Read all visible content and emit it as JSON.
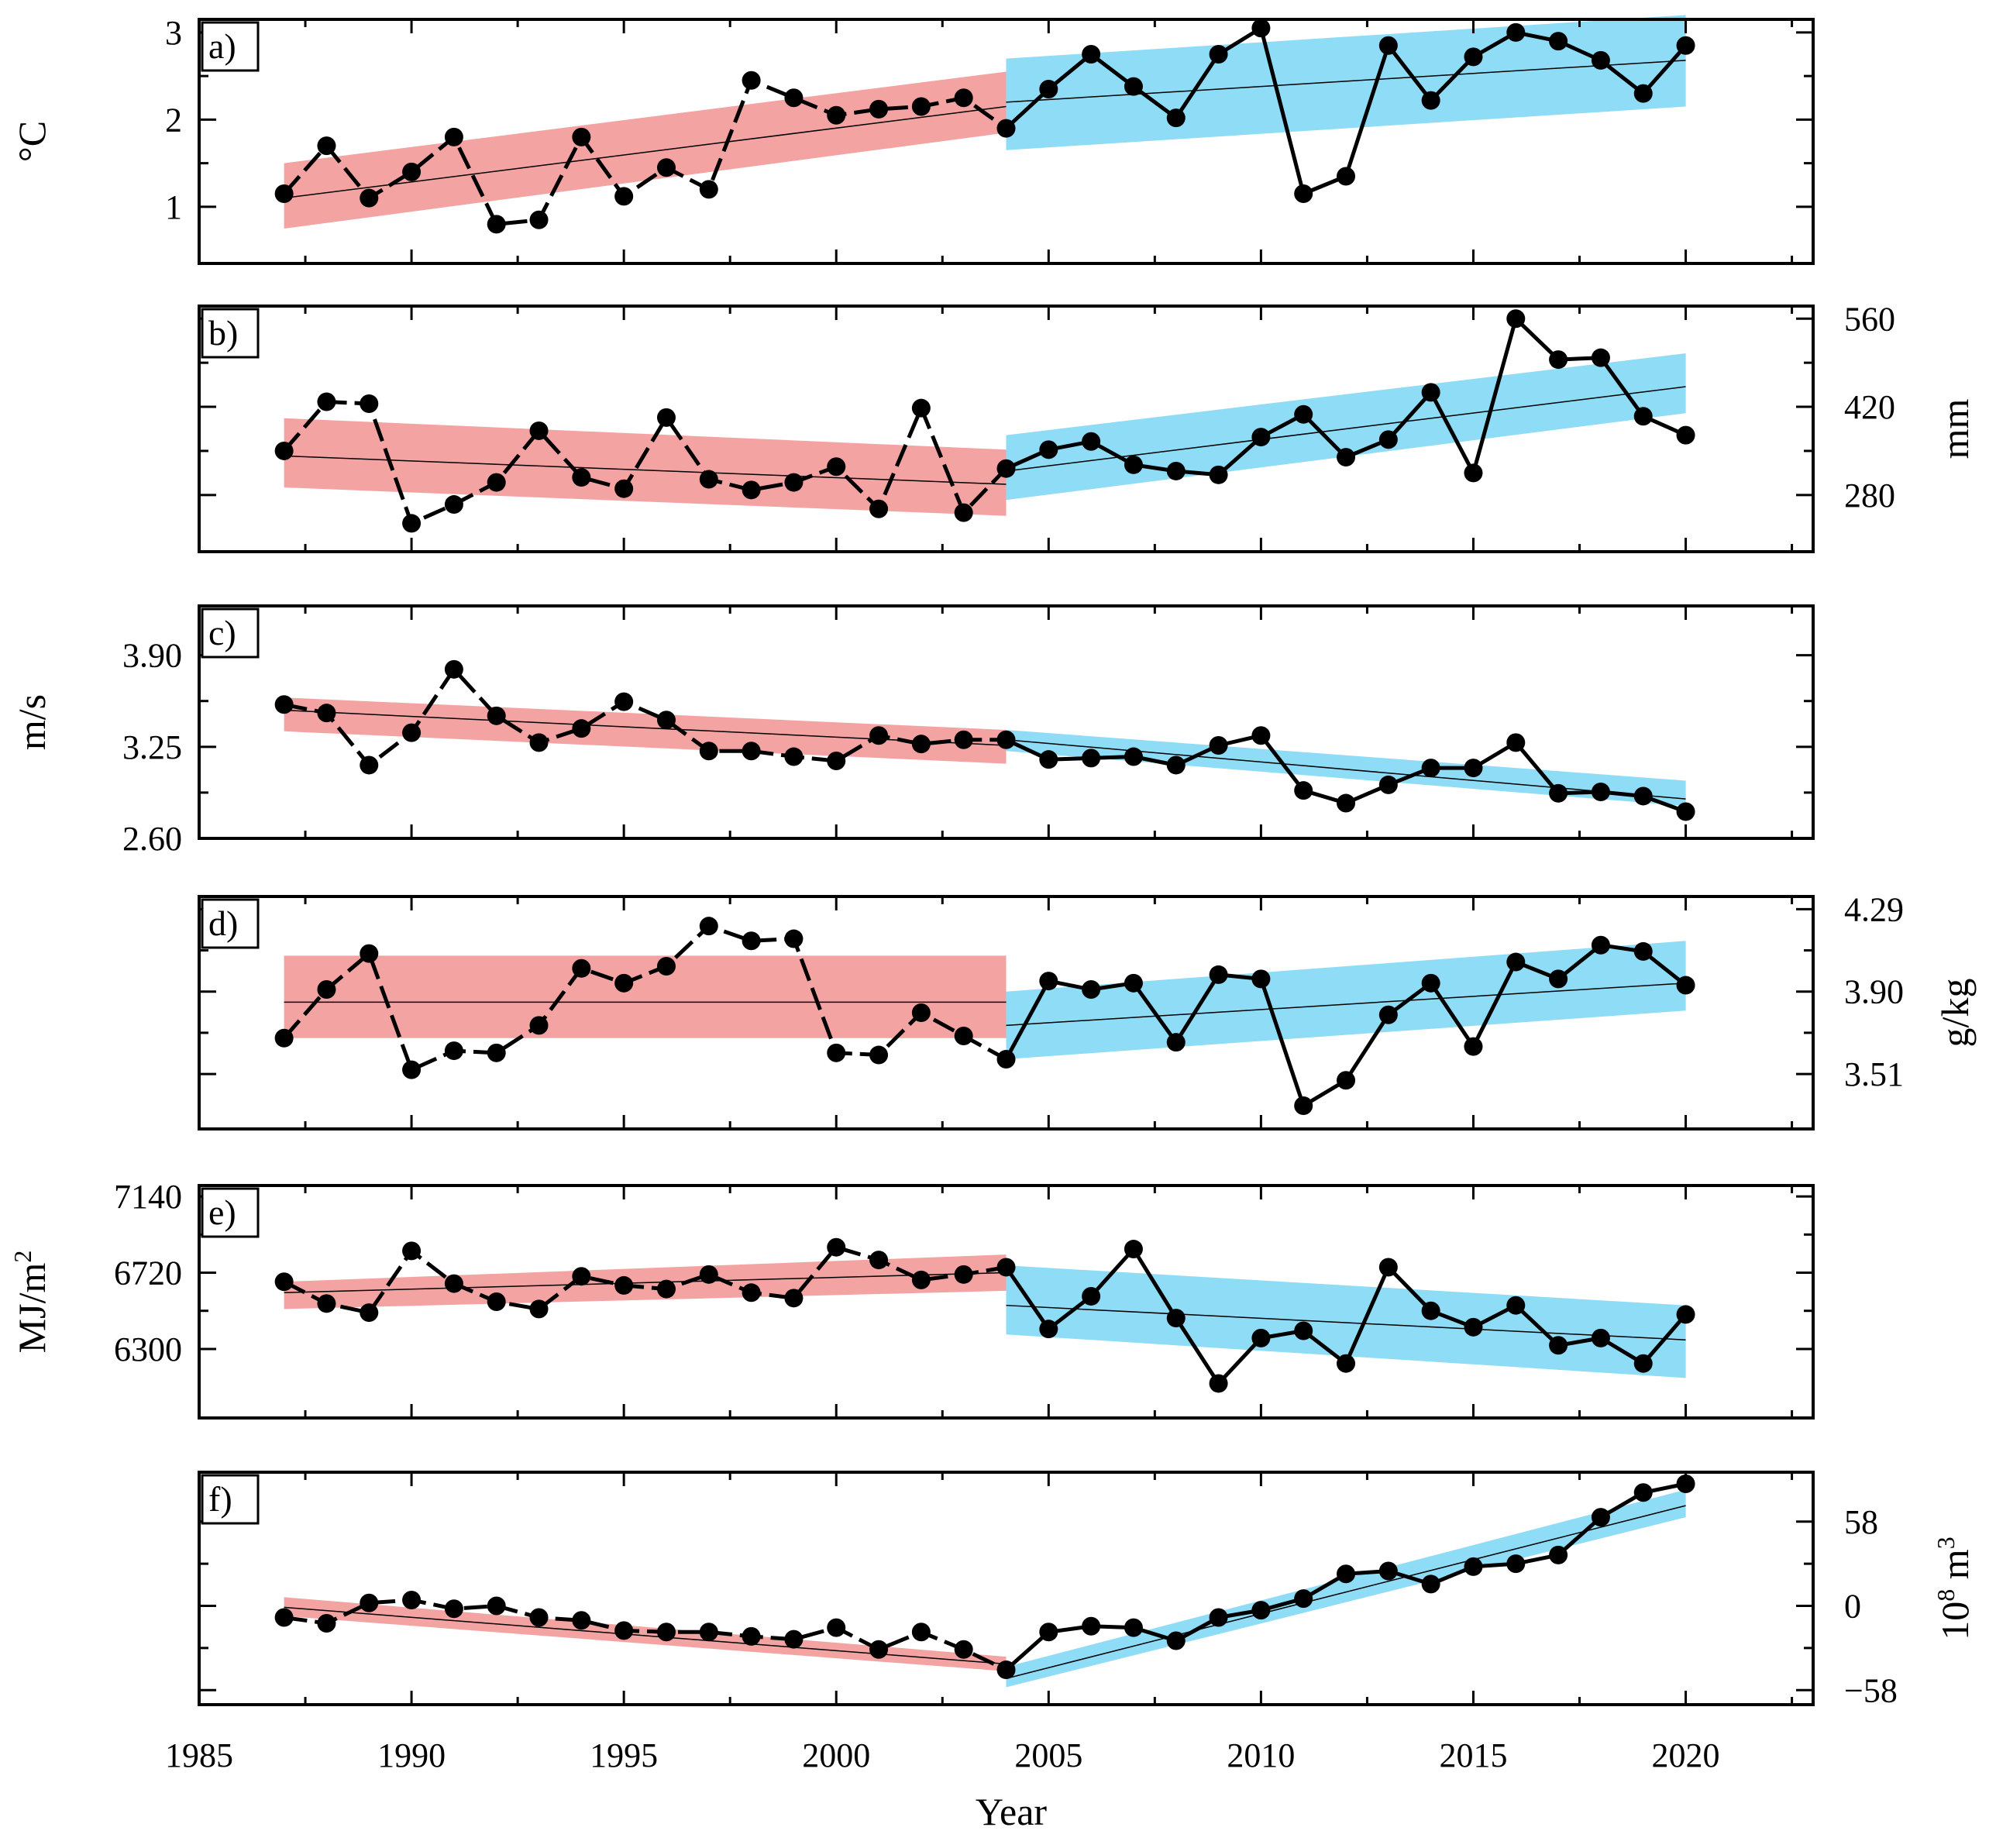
{
  "figure": {
    "xaxis": {
      "label": "Year",
      "ticks": [
        1985,
        1990,
        1995,
        2000,
        2005,
        2010,
        2015,
        2020
      ],
      "range": [
        1985,
        2023
      ]
    },
    "colors": {
      "early_band": "#f4a3a3",
      "late_band": "#8fdcf7",
      "line": "#000000",
      "marker": "#000000"
    },
    "split_year": 2004
  },
  "chart_data": [
    {
      "id": "a",
      "type": "line",
      "panel_label": "a)",
      "unit": "°C",
      "unit_side": "left",
      "tick_side": "left",
      "ylim": [
        0.35,
        3.15
      ],
      "yticks": [
        "1",
        "2",
        "3"
      ],
      "ytick_values": [
        1,
        2,
        3
      ],
      "x": [
        1987,
        1988,
        1989,
        1990,
        1991,
        1992,
        1993,
        1994,
        1995,
        1996,
        1997,
        1998,
        1999,
        2000,
        2001,
        2002,
        2003,
        2004,
        2005,
        2006,
        2007,
        2008,
        2009,
        2010,
        2011,
        2012,
        2013,
        2014,
        2015,
        2016,
        2017,
        2018,
        2019,
        2020
      ],
      "values": [
        1.15,
        1.7,
        1.1,
        1.4,
        1.8,
        0.8,
        0.85,
        1.8,
        1.12,
        1.45,
        1.2,
        2.45,
        2.25,
        2.05,
        2.12,
        2.15,
        2.25,
        1.9,
        2.35,
        2.75,
        2.38,
        2.02,
        2.75,
        3.05,
        1.15,
        1.35,
        2.85,
        2.22,
        2.72,
        3.0,
        2.9,
        2.68,
        2.3,
        2.85
      ],
      "trend_early": {
        "x": [
          1987,
          2004
        ],
        "y": [
          1.1,
          2.15
        ],
        "band_lower": [
          0.75,
          1.85
        ],
        "band_upper": [
          1.5,
          2.55
        ]
      },
      "trend_late": {
        "x": [
          2004,
          2020
        ],
        "y": [
          2.2,
          2.68
        ],
        "band_lower": [
          1.65,
          2.15
        ],
        "band_upper": [
          2.7,
          3.2
        ]
      }
    },
    {
      "id": "b",
      "type": "line",
      "panel_label": "b)",
      "unit": "mm",
      "unit_side": "right",
      "tick_side": "right",
      "ylim": [
        190,
        580
      ],
      "yticks": [
        "280",
        "420",
        "560"
      ],
      "ytick_values": [
        280,
        420,
        560
      ],
      "x": [
        1987,
        1988,
        1989,
        1990,
        1991,
        1992,
        1993,
        1994,
        1995,
        1996,
        1997,
        1998,
        1999,
        2000,
        2001,
        2002,
        2003,
        2004,
        2005,
        2006,
        2007,
        2008,
        2009,
        2010,
        2011,
        2012,
        2013,
        2014,
        2015,
        2016,
        2017,
        2018,
        2019,
        2020
      ],
      "values": [
        350,
        428,
        425,
        235,
        265,
        300,
        382,
        308,
        290,
        403,
        305,
        288,
        300,
        325,
        258,
        418,
        252,
        322,
        352,
        365,
        328,
        318,
        312,
        372,
        408,
        340,
        368,
        443,
        315,
        560,
        495,
        498,
        405,
        375
      ],
      "trend_early": {
        "x": [
          2004,
          1987
        ],
        "y": [
          297,
          342
        ],
        "band_lower": [
          247,
          292
        ],
        "band_upper": [
          352,
          402
        ]
      },
      "trend_late": {
        "x": [
          2004,
          2020
        ],
        "y": [
          318,
          452
        ],
        "band_lower": [
          272,
          410
        ],
        "band_upper": [
          375,
          505
        ]
      }
    },
    {
      "id": "c",
      "type": "line",
      "panel_label": "c)",
      "unit": "m/s",
      "unit_side": "left",
      "tick_side": "left",
      "ylim": [
        2.6,
        4.25
      ],
      "yticks": [
        "2.60",
        "3.25",
        "3.90"
      ],
      "ytick_values": [
        2.6,
        3.25,
        3.9
      ],
      "x": [
        1987,
        1988,
        1989,
        1990,
        1991,
        1992,
        1993,
        1994,
        1995,
        1996,
        1997,
        1998,
        1999,
        2000,
        2001,
        2002,
        2003,
        2004,
        2005,
        2006,
        2007,
        2008,
        2009,
        2010,
        2011,
        2012,
        2013,
        2014,
        2015,
        2016,
        2017,
        2018,
        2019,
        2020
      ],
      "values": [
        3.55,
        3.49,
        3.12,
        3.35,
        3.8,
        3.47,
        3.28,
        3.38,
        3.57,
        3.44,
        3.22,
        3.22,
        3.18,
        3.15,
        3.33,
        3.27,
        3.3,
        3.3,
        3.16,
        3.17,
        3.18,
        3.12,
        3.26,
        3.33,
        2.94,
        2.85,
        2.98,
        3.1,
        3.1,
        3.28,
        2.92,
        2.93,
        2.9,
        2.79
      ],
      "trend_early": {
        "x": [
          1987,
          2004
        ],
        "y": [
          3.51,
          3.26
        ],
        "band_lower": [
          3.36,
          3.13
        ],
        "band_upper": [
          3.6,
          3.37
        ]
      },
      "trend_late": {
        "x": [
          2004,
          2020
        ],
        "y": [
          3.3,
          2.88
        ],
        "band_lower": [
          3.22,
          2.83
        ],
        "band_upper": [
          3.37,
          3.01
        ]
      }
    },
    {
      "id": "d",
      "type": "line",
      "panel_label": "d)",
      "unit": "g/kg",
      "unit_side": "right",
      "tick_side": "right",
      "ylim": [
        3.25,
        4.35
      ],
      "yticks": [
        "3.51",
        "3.90",
        "4.29"
      ],
      "ytick_values": [
        3.51,
        3.9,
        4.29
      ],
      "x": [
        1987,
        1988,
        1989,
        1990,
        1991,
        1992,
        1993,
        1994,
        1995,
        1996,
        1997,
        1998,
        1999,
        2000,
        2001,
        2002,
        2003,
        2004,
        2005,
        2006,
        2007,
        2008,
        2009,
        2010,
        2011,
        2012,
        2013,
        2014,
        2015,
        2016,
        2017,
        2018,
        2019,
        2020
      ],
      "values": [
        3.68,
        3.91,
        4.08,
        3.53,
        3.62,
        3.61,
        3.74,
        4.01,
        3.94,
        4.02,
        4.21,
        4.14,
        4.15,
        3.61,
        3.6,
        3.8,
        3.69,
        3.58,
        3.95,
        3.91,
        3.94,
        3.66,
        3.98,
        3.96,
        3.36,
        3.48,
        3.79,
        3.94,
        3.64,
        4.04,
        3.96,
        4.12,
        4.09,
        3.93
      ],
      "trend_early": {
        "x": [
          1987,
          2004
        ],
        "y": [
          3.85,
          3.85
        ],
        "band_lower": [
          3.68,
          3.68
        ],
        "band_upper": [
          4.07,
          4.07
        ]
      },
      "trend_late": {
        "x": [
          2004,
          2020
        ],
        "y": [
          3.74,
          3.94
        ],
        "band_lower": [
          3.58,
          3.81
        ],
        "band_upper": [
          3.9,
          4.14
        ]
      }
    },
    {
      "id": "e",
      "type": "line",
      "panel_label": "e)",
      "unit": "MJ/m",
      "unit_sup": "2",
      "unit_side": "left",
      "tick_side": "left",
      "ylim": [
        5920,
        7200
      ],
      "yticks": [
        "6300",
        "6720",
        "7140"
      ],
      "ytick_values": [
        6300,
        6720,
        7140
      ],
      "x": [
        1987,
        1988,
        1989,
        1990,
        1991,
        1992,
        1993,
        1994,
        1995,
        1996,
        1997,
        1998,
        1999,
        2000,
        2001,
        2002,
        2003,
        2004,
        2005,
        2006,
        2007,
        2008,
        2009,
        2010,
        2011,
        2012,
        2013,
        2014,
        2015,
        2016,
        2017,
        2018,
        2019,
        2020
      ],
      "values": [
        6670,
        6550,
        6500,
        6840,
        6660,
        6560,
        6520,
        6700,
        6650,
        6630,
        6710,
        6610,
        6580,
        6860,
        6790,
        6680,
        6710,
        6750,
        6410,
        6590,
        6850,
        6470,
        6110,
        6360,
        6400,
        6220,
        6750,
        6510,
        6420,
        6540,
        6320,
        6360,
        6220,
        6490
      ],
      "trend_early": {
        "x": [
          1987,
          2004
        ],
        "y": [
          6610,
          6720
        ],
        "band_lower": [
          6520,
          6620
        ],
        "band_upper": [
          6670,
          6820
        ]
      },
      "trend_late": {
        "x": [
          2004,
          2020
        ],
        "y": [
          6540,
          6350
        ],
        "band_lower": [
          6380,
          6140
        ],
        "band_upper": [
          6760,
          6540
        ]
      }
    },
    {
      "id": "f",
      "type": "line",
      "panel_label": "f)",
      "unit": "10",
      "unit_sup": "8",
      "unit_tail": " m",
      "unit_sup2": "3",
      "unit_side": "right",
      "tick_side": "right",
      "ylim": [
        -68,
        92
      ],
      "yticks": [
        "−58",
        "0",
        "58"
      ],
      "ytick_values": [
        -58,
        0,
        58
      ],
      "x": [
        1987,
        1988,
        1989,
        1990,
        1991,
        1992,
        1993,
        1994,
        1995,
        1996,
        1997,
        1998,
        1999,
        2000,
        2001,
        2002,
        2003,
        2004,
        2005,
        2006,
        2007,
        2008,
        2009,
        2010,
        2011,
        2012,
        2013,
        2014,
        2015,
        2016,
        2017,
        2018,
        2019,
        2020
      ],
      "values": [
        -8,
        -12,
        2,
        4,
        -2,
        0,
        -8,
        -10,
        -17,
        -18,
        -18,
        -21,
        -23,
        -15,
        -30,
        -18,
        -30,
        -44,
        -18,
        -14,
        -15,
        -24,
        -8,
        -3,
        5,
        22,
        24,
        15,
        27,
        29,
        35,
        61,
        78,
        84
      ],
      "trend_early": {
        "x": [
          1987,
          2004
        ],
        "y": [
          -1,
          -40
        ],
        "band_lower": [
          -7,
          -45
        ],
        "band_upper": [
          6,
          -35
        ]
      },
      "trend_late": {
        "x": [
          2004,
          2020
        ],
        "y": [
          -50,
          69
        ],
        "band_lower": [
          -56,
          61
        ],
        "band_upper": [
          -42,
          80
        ]
      }
    }
  ]
}
